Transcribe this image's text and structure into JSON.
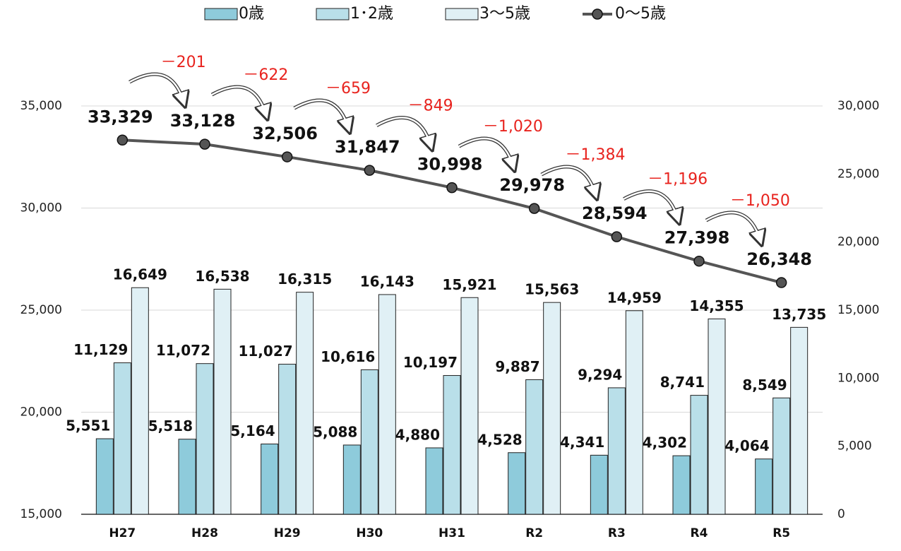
{
  "chart_data": {
    "type": "bar-line",
    "categories": [
      "H27",
      "H28",
      "H29",
      "H30",
      "H31",
      "R2",
      "R3",
      "R4",
      "R5"
    ],
    "series": [
      {
        "name": "0歳",
        "color": "#8ecbdb",
        "axis": "y2",
        "values": [
          5551,
          5518,
          5164,
          5088,
          4880,
          4528,
          4341,
          4302,
          4064
        ],
        "value_labels": [
          "5,551",
          "5,518",
          "5,164",
          "5,088",
          "4,880",
          "4,528",
          "4,341",
          "4,302",
          "4,064"
        ]
      },
      {
        "name": "1･2歳",
        "color": "#b9dfe9",
        "axis": "y2",
        "values": [
          11129,
          11072,
          11027,
          10616,
          10197,
          9887,
          9294,
          8741,
          8549
        ],
        "value_labels": [
          "11,129",
          "11,072",
          "11,027",
          "10,616",
          "10,197",
          "9,887",
          "9,294",
          "8,741",
          "8,549"
        ]
      },
      {
        "name": "3～5歳",
        "color": "#e0f0f5",
        "axis": "y2",
        "values": [
          16649,
          16538,
          16315,
          16143,
          15921,
          15563,
          14959,
          14355,
          13735
        ],
        "value_labels": [
          "16,649",
          "16,538",
          "16,315",
          "16,143",
          "15,921",
          "15,563",
          "14,959",
          "14,355",
          "13,735"
        ]
      },
      {
        "name": "0～5歳",
        "color": "#555555",
        "type": "line",
        "values": [
          33329,
          33128,
          32506,
          31847,
          30998,
          29978,
          28594,
          27398,
          26348
        ],
        "value_labels": [
          "33,329",
          "33,128",
          "32,506",
          "31,847",
          "30,998",
          "29,978",
          "28,594",
          "27,398",
          "26,348"
        ]
      }
    ],
    "annotations": [
      "－201",
      "－622",
      "－659",
      "－849",
      "－1,020",
      "－1,384",
      "－1,196",
      "－1,050"
    ],
    "ylim": [
      15000,
      35000
    ],
    "yticks": [
      {
        "value": 15000,
        "label": "15,000"
      },
      {
        "value": 20000,
        "label": "20,000"
      },
      {
        "value": 25000,
        "label": "25,000"
      },
      {
        "value": 30000,
        "label": "30,000"
      },
      {
        "value": 35000,
        "label": "35,000"
      }
    ],
    "y2lim": [
      0,
      30000
    ],
    "y2ticks": [
      0,
      {
        "value": 5000,
        "label": "5,000"
      },
      {
        "value": 10000,
        "label": "10,000"
      },
      {
        "value": 15000,
        "label": "15,000"
      },
      {
        "value": 20000,
        "label": "20,000"
      },
      {
        "value": 25000,
        "label": "25,000"
      },
      {
        "value": 30000,
        "label": "30,000"
      }
    ],
    "grid": true,
    "legend": "top"
  }
}
